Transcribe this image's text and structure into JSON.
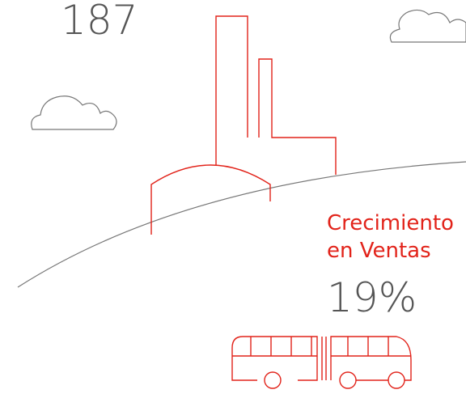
{
  "top_stat": "187",
  "growth": {
    "label_lines": [
      "Crecimiento",
      "en Ventas"
    ],
    "value": "19%"
  }
}
